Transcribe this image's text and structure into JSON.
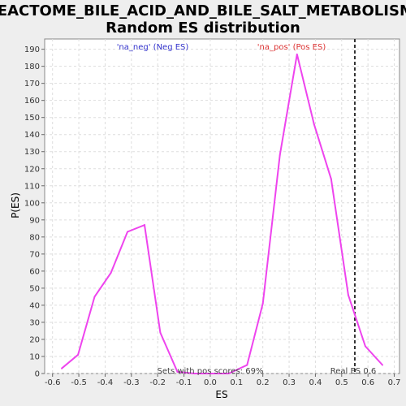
{
  "chart_data": {
    "type": "line",
    "title_line1": "REACTOME_BILE_ACID_AND_BILE_SALT_METABOLISM:",
    "title_line2": "Random ES distribution",
    "xlabel": "ES",
    "ylabel": "P(ES)",
    "xlim": [
      -0.63,
      0.72
    ],
    "ylim": [
      0,
      196
    ],
    "xticks": [
      -0.6,
      -0.5,
      -0.4,
      -0.3,
      -0.2,
      -0.1,
      0.0,
      0.1,
      0.2,
      0.3,
      0.4,
      0.5,
      0.6,
      0.7
    ],
    "xtick_labels": [
      "-0.6",
      "-0.5",
      "-0.4",
      "-0.3",
      "-0.2",
      "-0.1",
      "0.0",
      "0.1",
      "0.2",
      "0.3",
      "0.4",
      "0.5",
      "0.6",
      "0.7"
    ],
    "yticks": [
      0,
      10,
      20,
      30,
      40,
      50,
      60,
      70,
      80,
      90,
      100,
      110,
      120,
      130,
      140,
      150,
      160,
      170,
      180,
      190
    ],
    "grid": true,
    "legend_neg": "'na_neg' (Neg ES)",
    "legend_pos": "'na_pos' (Pos ES)",
    "annotation_pos_scores": "Sets with pos scores: 69%",
    "annotation_real_es": "Real ES 0.6",
    "real_es": 0.55,
    "line_color": "#ee44ee",
    "series": [
      {
        "x": [
          -0.565,
          -0.503,
          -0.44,
          -0.378,
          -0.315,
          -0.25,
          -0.19,
          -0.125,
          -0.06,
          0.0,
          0.07,
          0.14,
          0.2,
          0.265,
          0.33,
          0.395,
          0.46,
          0.525,
          0.59,
          0.655
        ],
        "y": [
          3,
          11,
          45,
          59,
          83,
          87,
          24,
          1,
          0,
          0,
          0,
          5,
          41,
          128,
          187,
          146,
          114,
          46,
          16,
          5
        ]
      }
    ]
  }
}
